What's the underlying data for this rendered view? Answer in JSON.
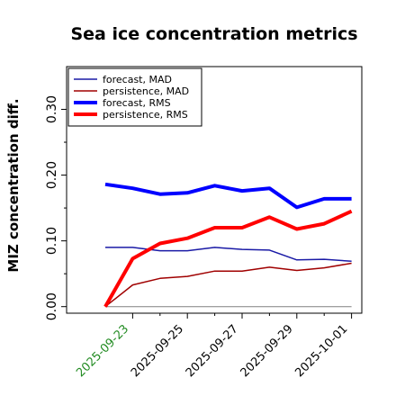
{
  "chart_data": {
    "type": "line",
    "title": "Sea ice concentration metrics",
    "xlabel": "",
    "ylabel": "MIZ concentration diff.",
    "x": [
      "2025-09-22",
      "2025-09-23",
      "2025-09-24",
      "2025-09-25",
      "2025-09-26",
      "2025-09-27",
      "2025-09-28",
      "2025-09-29",
      "2025-09-30",
      "2025-10-01"
    ],
    "x_tick_labels": [
      {
        "label": "2025-09-23",
        "color": "#228b22"
      },
      {
        "label": "2025-09-25",
        "color": "#000000"
      },
      {
        "label": "2025-09-27",
        "color": "#000000"
      },
      {
        "label": "2025-09-29",
        "color": "#000000"
      },
      {
        "label": "2025-10-01",
        "color": "#000000"
      }
    ],
    "y_tick_labels": [
      "0.00",
      "0.10",
      "0.20",
      "0.30"
    ],
    "ylim": [
      -0.01,
      0.365
    ],
    "grid": false,
    "legend_position": "top-left",
    "zero_line_color": "#808080",
    "series": [
      {
        "name": "forecast,  MAD",
        "color": "#1a1aa6",
        "width": "thin",
        "values": [
          0.09,
          0.09,
          0.085,
          0.085,
          0.09,
          0.087,
          0.086,
          0.071,
          0.072,
          0.069
        ]
      },
      {
        "name": "persistence, MAD",
        "color": "#a00000",
        "width": "thin",
        "values": [
          0.0,
          0.033,
          0.043,
          0.046,
          0.054,
          0.054,
          0.06,
          0.055,
          0.059,
          0.066
        ]
      },
      {
        "name": "forecast,  RMS",
        "color": "#0000ff",
        "width": "thick",
        "values": [
          0.186,
          0.18,
          0.171,
          0.173,
          0.184,
          0.176,
          0.18,
          0.151,
          0.164,
          0.164
        ]
      },
      {
        "name": "persistence, RMS",
        "color": "#ff0000",
        "width": "thick",
        "values": [
          0.0,
          0.073,
          0.096,
          0.104,
          0.12,
          0.12,
          0.136,
          0.118,
          0.126,
          0.145
        ]
      }
    ]
  }
}
